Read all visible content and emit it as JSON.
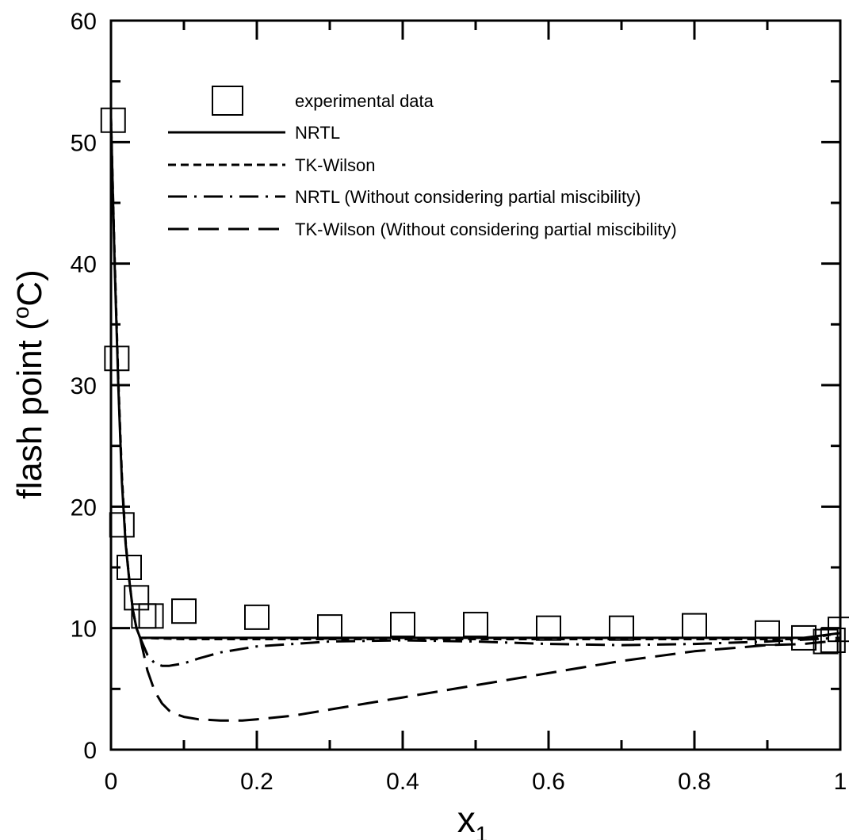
{
  "chart_data": {
    "type": "line",
    "ylabel": "flash point (",
    "ylabel_sup": "o",
    "ylabel_end": "C)",
    "xlabel": "x",
    "xlabel_sub": "1",
    "xlim": [
      0,
      1
    ],
    "ylim": [
      0,
      60
    ],
    "x_ticks": [
      0,
      0.2,
      0.4,
      0.6,
      0.8,
      1
    ],
    "x_tick_labels": [
      "0",
      "0.2",
      "0.4",
      "0.6",
      "0.8",
      "1"
    ],
    "y_ticks": [
      0,
      10,
      20,
      30,
      40,
      50,
      60
    ],
    "y_tick_labels": [
      "0",
      "10",
      "20",
      "30",
      "40",
      "50",
      "60"
    ],
    "legend_position": "top-right",
    "series": [
      {
        "name": "experimental data",
        "style": "square-marker",
        "x": [
          0.003,
          0.008,
          0.015,
          0.025,
          0.035,
          0.045,
          0.055,
          0.1,
          0.2,
          0.3,
          0.4,
          0.5,
          0.6,
          0.7,
          0.8,
          0.9,
          0.95,
          0.98,
          0.99,
          1.0
        ],
        "y": [
          51.8,
          32.2,
          18.5,
          15.0,
          12.5,
          11.0,
          11.0,
          11.4,
          10.9,
          10.1,
          10.3,
          10.3,
          10.0,
          10.0,
          10.2,
          9.6,
          9.2,
          8.9,
          9.0,
          9.9
        ]
      },
      {
        "name": "NRTL",
        "style": "solid",
        "x": [
          0,
          0.005,
          0.01,
          0.015,
          0.02,
          0.025,
          0.03,
          0.035,
          0.04,
          0.1,
          0.2,
          0.4,
          0.6,
          0.8,
          0.95,
          1.0
        ],
        "y": [
          52.0,
          40.0,
          30.0,
          22.0,
          17.0,
          14.0,
          11.5,
          10.0,
          9.2,
          9.2,
          9.2,
          9.2,
          9.2,
          9.2,
          9.2,
          9.6
        ]
      },
      {
        "name": "TK-Wilson",
        "style": "short-dash",
        "x": [
          0,
          0.005,
          0.01,
          0.015,
          0.02,
          0.025,
          0.03,
          0.035,
          0.04,
          0.1,
          0.2,
          0.4,
          0.6,
          0.8,
          0.95,
          1.0
        ],
        "y": [
          52.0,
          40.5,
          30.5,
          22.5,
          17.2,
          14.0,
          11.5,
          10.0,
          9.2,
          9.1,
          9.1,
          9.1,
          9.1,
          9.1,
          9.1,
          9.6
        ]
      },
      {
        "name": "NRTL (Without considering partial miscibility)",
        "style": "dash-dot",
        "x": [
          0.04,
          0.05,
          0.06,
          0.07,
          0.08,
          0.1,
          0.12,
          0.15,
          0.2,
          0.3,
          0.4,
          0.5,
          0.6,
          0.7,
          0.8,
          0.9,
          1.0
        ],
        "y": [
          9.2,
          7.8,
          7.1,
          6.9,
          6.9,
          7.1,
          7.5,
          8.0,
          8.5,
          8.9,
          9.0,
          8.9,
          8.7,
          8.6,
          8.7,
          8.9,
          9.2
        ]
      },
      {
        "name": "TK-Wilson (Without considering partial miscibility)",
        "style": "long-dash",
        "x": [
          0.04,
          0.05,
          0.06,
          0.07,
          0.08,
          0.09,
          0.1,
          0.12,
          0.15,
          0.18,
          0.2,
          0.25,
          0.3,
          0.4,
          0.5,
          0.6,
          0.7,
          0.8,
          0.9,
          0.95,
          1.0
        ],
        "y": [
          9.2,
          6.5,
          4.8,
          3.8,
          3.2,
          2.9,
          2.7,
          2.5,
          2.4,
          2.4,
          2.5,
          2.8,
          3.3,
          4.3,
          5.3,
          6.3,
          7.3,
          8.1,
          8.6,
          8.7,
          9.0
        ]
      }
    ]
  }
}
